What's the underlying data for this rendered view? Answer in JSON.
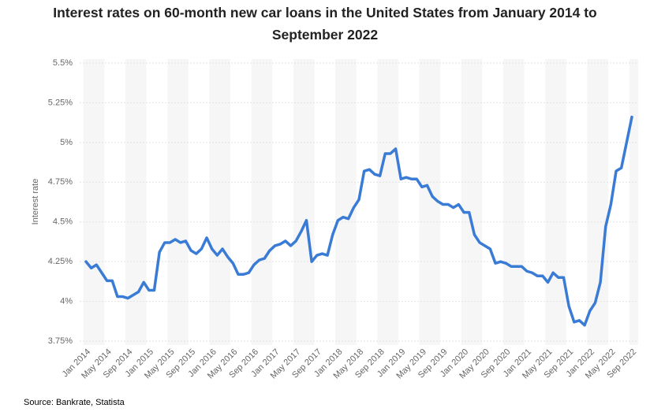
{
  "chart_data": {
    "type": "line",
    "title": "Interest rates on 60-month new car loans in the United States from January 2014 to September 2022",
    "ylabel": "Interest rate",
    "source": "Source: Bankrate, Statista",
    "categories": [
      "Jan 2014",
      null,
      null,
      null,
      "May 2014",
      null,
      null,
      null,
      "Sep 2014",
      null,
      null,
      null,
      "Jan 2015",
      null,
      null,
      null,
      "May 2015",
      null,
      null,
      null,
      "Sep 2015",
      null,
      null,
      null,
      "Jan 2016",
      null,
      null,
      null,
      "May 2016",
      null,
      null,
      null,
      "Sep 2016",
      null,
      null,
      null,
      "Jan 2017",
      null,
      null,
      null,
      "May 2017",
      null,
      null,
      null,
      "Sep 2017",
      null,
      null,
      null,
      "Jan 2018",
      null,
      null,
      null,
      "May 2018",
      null,
      null,
      null,
      "Sep 2018",
      null,
      null,
      null,
      "Jan 2019",
      null,
      null,
      null,
      "May 2019",
      null,
      null,
      null,
      "Sep 2019",
      null,
      null,
      null,
      "Jan 2020",
      null,
      null,
      null,
      "May 2020",
      null,
      null,
      null,
      "Sep 2020",
      null,
      null,
      null,
      "Jan 2021",
      null,
      null,
      null,
      "May 2021",
      null,
      null,
      null,
      "Sep 2021",
      null,
      null,
      null,
      "Jan 2022",
      null,
      null,
      null,
      "May 2022",
      null,
      null,
      null,
      "Sep 2022"
    ],
    "series": [
      {
        "name": "Interest rate",
        "color": "#3a7bd5",
        "values": [
          4.25,
          4.21,
          4.23,
          4.18,
          4.13,
          4.13,
          4.03,
          4.03,
          4.02,
          4.04,
          4.06,
          4.12,
          4.07,
          4.07,
          4.31,
          4.37,
          4.37,
          4.39,
          4.37,
          4.38,
          4.32,
          4.3,
          4.33,
          4.4,
          4.33,
          4.29,
          4.33,
          4.28,
          4.24,
          4.17,
          4.17,
          4.18,
          4.23,
          4.26,
          4.27,
          4.32,
          4.35,
          4.36,
          4.38,
          4.35,
          4.38,
          4.44,
          4.51,
          4.25,
          4.29,
          4.3,
          4.29,
          4.42,
          4.51,
          4.53,
          4.52,
          4.59,
          4.64,
          4.82,
          4.83,
          4.8,
          4.79,
          4.93,
          4.93,
          4.96,
          4.77,
          4.78,
          4.77,
          4.77,
          4.72,
          4.73,
          4.66,
          4.63,
          4.61,
          4.61,
          4.59,
          4.61,
          4.56,
          4.56,
          4.42,
          4.37,
          4.35,
          4.33,
          4.24,
          4.25,
          4.24,
          4.22,
          4.22,
          4.22,
          4.19,
          4.18,
          4.16,
          4.16,
          4.12,
          4.18,
          4.15,
          4.15,
          3.97,
          3.87,
          3.88,
          3.85,
          3.94,
          3.99,
          4.12,
          4.47,
          4.61,
          4.82,
          4.84,
          5.0,
          5.16
        ]
      }
    ],
    "ylim": [
      3.75,
      5.5
    ],
    "yticks": [
      {
        "value": 3.75,
        "label": "3.75%"
      },
      {
        "value": 4,
        "label": "4%"
      },
      {
        "value": 4.25,
        "label": "4.25%"
      },
      {
        "value": 4.5,
        "label": "4.5%"
      },
      {
        "value": 4.75,
        "label": "4.75%"
      },
      {
        "value": 5,
        "label": "5%"
      },
      {
        "value": 5.25,
        "label": "5.25%"
      },
      {
        "value": 5.5,
        "label": "5.5%"
      }
    ],
    "grid": true
  }
}
